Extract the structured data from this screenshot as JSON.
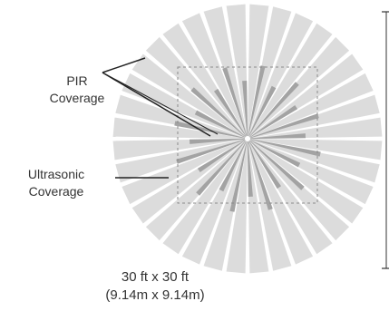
{
  "labels": {
    "pir": [
      "PIR",
      "Coverage"
    ],
    "ultrasonic": [
      "Ultrasonic",
      "Coverage"
    ],
    "dimensions": [
      "30 ft x 30 ft",
      "(9.14m x 9.14m)"
    ]
  },
  "colors": {
    "pir_ray": "#dcdcdc",
    "ultrasonic_ray": "#a3a3a3",
    "boundary": "#8a8a8a",
    "leader_line": "#222222",
    "label_text": "#333333",
    "scale_bar": "#333333"
  }
}
